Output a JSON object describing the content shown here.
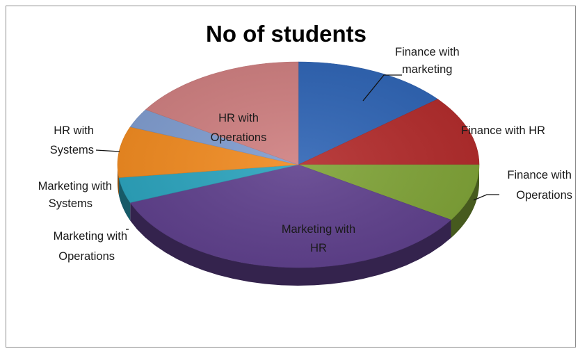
{
  "chart_data": {
    "type": "pie",
    "title": "No of students",
    "categories": [
      "Finance with marketing",
      "Finance with HR",
      "Finance with Operations",
      "Marketing with HR",
      "Marketing with Operations",
      "Marketing with Systems",
      "HR with Systems",
      "HR with Operations"
    ],
    "values": [
      14,
      11,
      9,
      35,
      4,
      8,
      3,
      16
    ],
    "colors": [
      "#2e64b5",
      "#b22a2a",
      "#7fa336",
      "#5e3f8c",
      "#2aa3bd",
      "#f18a1f",
      "#7f9ccf",
      "#cf7f80"
    ],
    "style": "3d",
    "legend": "none",
    "data_labels": "category name"
  }
}
